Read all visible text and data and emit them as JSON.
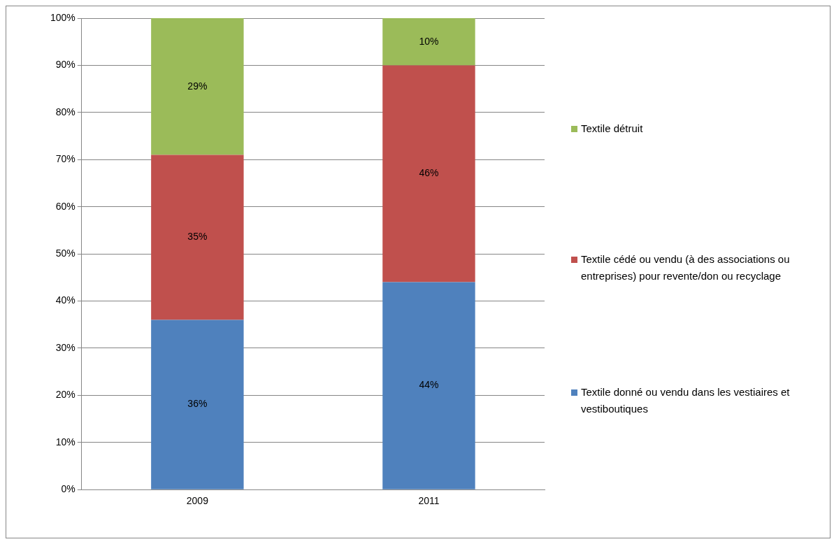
{
  "chart_data": {
    "type": "bar",
    "stacked": true,
    "categories": [
      "2009",
      "2011"
    ],
    "series": [
      {
        "name": "Textile donné ou vendu dans les vestiaires et vestiboutiques",
        "color": "#4f81bd",
        "values": [
          36,
          44
        ],
        "value_labels": [
          "36%",
          "44%"
        ]
      },
      {
        "name": "Textile cédé ou vendu (à des associations ou entreprises) pour revente/don ou recyclage",
        "color": "#c0504d",
        "values": [
          35,
          46
        ],
        "value_labels": [
          "35%",
          "46%"
        ]
      },
      {
        "name": "Textile détruit",
        "color": "#9bbb59",
        "values": [
          29,
          10
        ],
        "value_labels": [
          "29%",
          "10%"
        ]
      }
    ],
    "ylim": [
      0,
      100
    ],
    "yticks": [
      {
        "value": 0,
        "label": "0%"
      },
      {
        "value": 10,
        "label": "10%"
      },
      {
        "value": 20,
        "label": "20%"
      },
      {
        "value": 30,
        "label": "30%"
      },
      {
        "value": 40,
        "label": "40%"
      },
      {
        "value": 50,
        "label": "50%"
      },
      {
        "value": 60,
        "label": "60%"
      },
      {
        "value": 70,
        "label": "70%"
      },
      {
        "value": 80,
        "label": "80%"
      },
      {
        "value": 90,
        "label": "90%"
      },
      {
        "value": 100,
        "label": "100%"
      }
    ],
    "grid": "y",
    "legend": "right"
  }
}
